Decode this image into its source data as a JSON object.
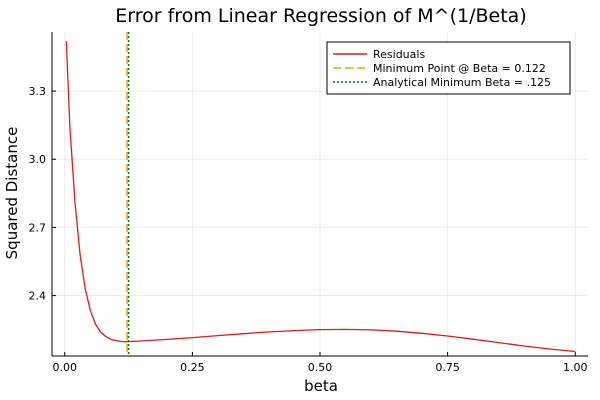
{
  "chart_data": {
    "type": "line",
    "title": "Error from Linear Regression of M^(1/Beta)",
    "xlabel": "beta",
    "ylabel": "Squared Distance",
    "xlim": [
      -0.025,
      1.025
    ],
    "ylim": [
      2.134,
      3.56
    ],
    "x_ticks": [
      0.0,
      0.25,
      0.5,
      0.75,
      1.0
    ],
    "x_tick_labels": [
      "0.00",
      "0.25",
      "0.50",
      "0.75",
      "1.00"
    ],
    "y_ticks": [
      2.4,
      2.7,
      3.0,
      3.3
    ],
    "y_tick_labels": [
      "2.4",
      "2.7",
      "3.0",
      "3.3"
    ],
    "grid": true,
    "legend_position": "top-right",
    "series": [
      {
        "name": "Residuals",
        "color": "#e41a1c",
        "style": "solid",
        "x": [
          0.003,
          0.01,
          0.02,
          0.03,
          0.04,
          0.05,
          0.06,
          0.07,
          0.08,
          0.09,
          0.1,
          0.11,
          0.122,
          0.15,
          0.2,
          0.25,
          0.3,
          0.35,
          0.4,
          0.45,
          0.5,
          0.55,
          0.6,
          0.65,
          0.7,
          0.75,
          0.8,
          0.85,
          0.9,
          0.95,
          1.0
        ],
        "y": [
          3.52,
          3.14,
          2.81,
          2.58,
          2.43,
          2.335,
          2.275,
          2.24,
          2.22,
          2.208,
          2.202,
          2.198,
          2.197,
          2.2,
          2.207,
          2.215,
          2.224,
          2.232,
          2.24,
          2.246,
          2.25,
          2.251,
          2.249,
          2.243,
          2.234,
          2.222,
          2.208,
          2.193,
          2.178,
          2.165,
          2.154
        ]
      },
      {
        "name": "Minimum Point @ Beta = 0.122",
        "color": "#ff9f00",
        "style": "dashed",
        "vline_x": 0.122
      },
      {
        "name": "Analytical Minimum Beta = .125",
        "color": "#008000",
        "style": "dotted",
        "vline_x": 0.125
      }
    ]
  }
}
